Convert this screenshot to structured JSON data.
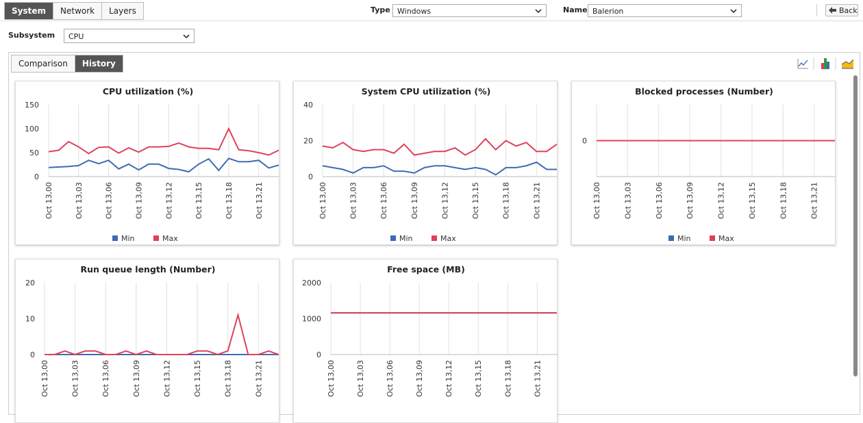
{
  "tabs": [
    {
      "label": "System",
      "active": true
    },
    {
      "label": "Network"
    },
    {
      "label": "Layers"
    }
  ],
  "filters": {
    "type_label": "Type",
    "type_value": "Windows",
    "name_label": "Name",
    "name_value": "Balerion",
    "back": "Back",
    "subsystem_label": "Subsystem",
    "subsystem_value": "CPU"
  },
  "view_tabs": [
    {
      "label": "Comparison"
    },
    {
      "label": "History",
      "active": true
    }
  ],
  "chart_data": [
    {
      "type": "line",
      "title": "CPU utilization (%)",
      "categories": [
        "Oct 13,00",
        null,
        null,
        "Oct 13,03",
        null,
        null,
        "Oct 13,06",
        null,
        null,
        "Oct 13,09",
        null,
        null,
        "Oct 13,12",
        null,
        null,
        "Oct 13,15",
        null,
        null,
        "Oct 13,18",
        null,
        null,
        "Oct 13,21",
        null,
        null
      ],
      "series": [
        {
          "name": "Min",
          "color": "#3d6bb3",
          "values": [
            19,
            20,
            21,
            23,
            34,
            27,
            34,
            16,
            26,
            14,
            26,
            26,
            17,
            15,
            10,
            26,
            37,
            13,
            38,
            31,
            31,
            34,
            18,
            24
          ]
        },
        {
          "name": "Max",
          "color": "#e0405a",
          "values": [
            52,
            55,
            73,
            62,
            48,
            61,
            62,
            49,
            60,
            51,
            62,
            62,
            63,
            70,
            62,
            59,
            59,
            56,
            100,
            56,
            54,
            50,
            45,
            55
          ]
        }
      ],
      "ylim": [
        0,
        150
      ],
      "yticks": [
        0,
        50,
        100,
        150
      ],
      "grid": "x",
      "legend": "bottom"
    },
    {
      "type": "line",
      "title": "System CPU utilization (%)",
      "categories": [
        "Oct 13,00",
        null,
        null,
        "Oct 13,03",
        null,
        null,
        "Oct 13,06",
        null,
        null,
        "Oct 13,09",
        null,
        null,
        "Oct 13,12",
        null,
        null,
        "Oct 13,15",
        null,
        null,
        "Oct 13,18",
        null,
        null,
        "Oct 13,21",
        null,
        null
      ],
      "series": [
        {
          "name": "Min",
          "color": "#3d6bb3",
          "values": [
            6,
            5,
            4,
            2,
            5,
            5,
            6,
            3,
            3,
            2,
            5,
            6,
            6,
            5,
            4,
            5,
            4,
            1,
            5,
            5,
            6,
            8,
            4,
            4
          ]
        },
        {
          "name": "Max",
          "color": "#e0405a",
          "values": [
            17,
            16,
            19,
            15,
            14,
            15,
            15,
            13,
            18,
            12,
            13,
            14,
            14,
            16,
            12,
            15,
            21,
            15,
            20,
            17,
            19,
            14,
            14,
            18
          ]
        }
      ],
      "ylim": [
        0,
        40
      ],
      "yticks": [
        0,
        20,
        40
      ],
      "grid": "x",
      "legend": "bottom"
    },
    {
      "type": "line",
      "title": "Blocked processes (Number)",
      "categories": [
        "Oct 13,00",
        null,
        null,
        "Oct 13,03",
        null,
        null,
        "Oct 13,06",
        null,
        null,
        "Oct 13,09",
        null,
        null,
        "Oct 13,12",
        null,
        null,
        "Oct 13,15",
        null,
        null,
        "Oct 13,18",
        null,
        null,
        "Oct 13,21",
        null,
        null
      ],
      "series": [
        {
          "name": "Min",
          "color": "#3d6bb3",
          "values": [
            0,
            0,
            0,
            0,
            0,
            0,
            0,
            0,
            0,
            0,
            0,
            0,
            0,
            0,
            0,
            0,
            0,
            0,
            0,
            0,
            0,
            0,
            0,
            0
          ]
        },
        {
          "name": "Max",
          "color": "#e0405a",
          "values": [
            0,
            0,
            0,
            0,
            0,
            0,
            0,
            0,
            0,
            0,
            0,
            0,
            0,
            0,
            0,
            0,
            0,
            0,
            0,
            0,
            0,
            0,
            0,
            0
          ]
        }
      ],
      "ylim": [
        -1,
        1
      ],
      "yticks": [
        0
      ],
      "grid": "x",
      "legend": "bottom"
    },
    {
      "type": "line",
      "title": "Run queue length (Number)",
      "categories": [
        "Oct 13,00",
        null,
        null,
        "Oct 13,03",
        null,
        null,
        "Oct 13,06",
        null,
        null,
        "Oct 13,09",
        null,
        null,
        "Oct 13,12",
        null,
        null,
        "Oct 13,15",
        null,
        null,
        "Oct 13,18",
        null,
        null,
        "Oct 13,21",
        null,
        null
      ],
      "series": [
        {
          "color": "#3d6bb3",
          "values": [
            0,
            0,
            0,
            0,
            0,
            0,
            0,
            0,
            0,
            0,
            0,
            0,
            0,
            0,
            0,
            0,
            0,
            0,
            0,
            0,
            0,
            0,
            0,
            0
          ]
        },
        {
          "color": "#e0405a",
          "values": [
            0,
            0,
            1,
            0,
            1,
            1,
            0,
            0,
            1,
            0,
            1,
            0,
            0,
            0,
            0,
            1,
            1,
            0,
            1,
            11,
            0,
            0,
            1,
            0
          ]
        }
      ],
      "ylim": [
        0,
        20
      ],
      "yticks": [
        0,
        10,
        20
      ],
      "grid": "x"
    },
    {
      "type": "line",
      "title": "Free space (MB)",
      "categories": [
        "Oct 13,00",
        null,
        null,
        "Oct 13,03",
        null,
        null,
        "Oct 13,06",
        null,
        null,
        "Oct 13,09",
        null,
        null,
        "Oct 13,12",
        null,
        null,
        "Oct 13,15",
        null,
        null,
        "Oct 13,18",
        null,
        null,
        "Oct 13,21",
        null,
        null
      ],
      "series": [
        {
          "color": "#3d6bb3",
          "values": [
            1160,
            1160,
            1160,
            1160,
            1160,
            1160,
            1160,
            1160,
            1160,
            1160,
            1160,
            1160,
            1160,
            1160,
            1160,
            1160,
            1160,
            1160,
            1160,
            1160,
            1160,
            1160,
            1160,
            1160
          ]
        },
        {
          "color": "#e0405a",
          "values": [
            1160,
            1160,
            1160,
            1160,
            1160,
            1160,
            1160,
            1160,
            1160,
            1160,
            1160,
            1160,
            1160,
            1160,
            1160,
            1160,
            1160,
            1160,
            1160,
            1160,
            1160,
            1160,
            1160,
            1160
          ]
        }
      ],
      "ylim": [
        0,
        2000
      ],
      "yticks": [
        0,
        1000,
        2000
      ],
      "grid": "x"
    }
  ]
}
